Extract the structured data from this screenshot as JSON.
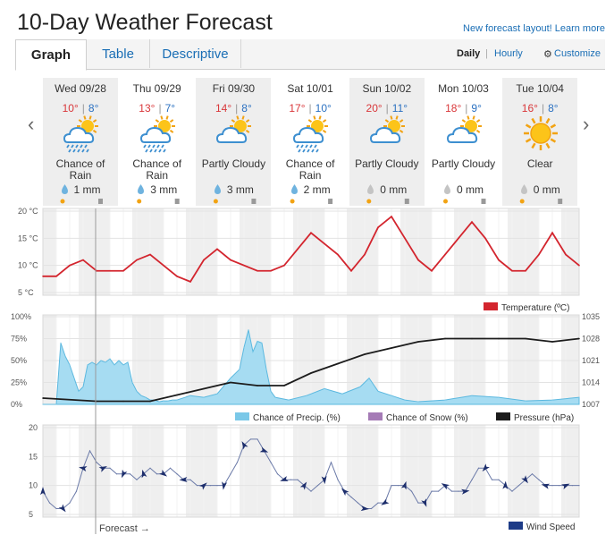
{
  "header": {
    "title": "10-Day Weather Forecast",
    "layout_link": "New forecast layout! Learn more"
  },
  "tabs": [
    {
      "label": "Graph"
    },
    {
      "label": "Table"
    },
    {
      "label": "Descriptive"
    }
  ],
  "view_switch": {
    "daily": "Daily",
    "separator": "|",
    "hourly": "Hourly",
    "customize": "Customize"
  },
  "days": [
    {
      "name": "Wed 09/28",
      "high": "10°",
      "low": "8°",
      "condition_line1": "Chance of",
      "condition_line2": "Rain",
      "icon": "rain-cloud-sun-icon",
      "precip": "1 mm",
      "precip_color": "#6fb3df"
    },
    {
      "name": "Thu 09/29",
      "high": "13°",
      "low": "7°",
      "condition_line1": "Chance of",
      "condition_line2": "Rain",
      "icon": "rain-cloud-sun-icon",
      "precip": "3 mm",
      "precip_color": "#6fb3df"
    },
    {
      "name": "Fri 09/30",
      "high": "14°",
      "low": "8°",
      "condition_line1": "Partly Cloudy",
      "condition_line2": "",
      "icon": "partly-cloudy-icon",
      "precip": "3 mm",
      "precip_color": "#6fb3df"
    },
    {
      "name": "Sat 10/01",
      "high": "17°",
      "low": "10°",
      "condition_line1": "Chance of",
      "condition_line2": "Rain",
      "icon": "rain-cloud-sun-icon",
      "precip": "2 mm",
      "precip_color": "#6fb3df"
    },
    {
      "name": "Sun 10/02",
      "high": "20°",
      "low": "11°",
      "condition_line1": "Partly Cloudy",
      "condition_line2": "",
      "icon": "partly-cloudy-icon",
      "precip": "0 mm",
      "precip_color": "#c4c4c4"
    },
    {
      "name": "Mon 10/03",
      "high": "18°",
      "low": "9°",
      "condition_line1": "Partly Cloudy",
      "condition_line2": "",
      "icon": "partly-cloudy-icon",
      "precip": "0 mm",
      "precip_color": "#c4c4c4"
    },
    {
      "name": "Tue 10/04",
      "high": "16°",
      "low": "8°",
      "condition_line1": "Clear",
      "condition_line2": "",
      "icon": "sun-icon",
      "precip": "0 mm",
      "precip_color": "#c4c4c4"
    }
  ],
  "nav": {
    "prev": "‹",
    "next": "›"
  },
  "chart_data": [
    {
      "type": "line",
      "name": "temperature",
      "ylim": [
        5,
        20
      ],
      "yticks": [
        20,
        15,
        10,
        5
      ],
      "ytick_unit": " °C",
      "x_hours": [
        0,
        6,
        12,
        18,
        24,
        30,
        36,
        42,
        48,
        54,
        60,
        66,
        72,
        78,
        84,
        96,
        102,
        108,
        114,
        120,
        126,
        132,
        138,
        144,
        150,
        156,
        162,
        168,
        174,
        180,
        186,
        192,
        198,
        204,
        210,
        216,
        222,
        228,
        234,
        240
      ],
      "series": [
        {
          "name": "Temperature (ºC)",
          "color": "#d3252e",
          "values": [
            8,
            8,
            10,
            11,
            9,
            9,
            9,
            11,
            12,
            10,
            8,
            7,
            11,
            13,
            11,
            9,
            9,
            10,
            13,
            16,
            14,
            12,
            9,
            12,
            17,
            19,
            15,
            11,
            9,
            12,
            15,
            18,
            15,
            11,
            9,
            9,
            12,
            16,
            12,
            10
          ]
        }
      ],
      "legend": "Temperature (ºC)",
      "legend_color": "#d3252e"
    },
    {
      "type": "area",
      "name": "precip-pressure",
      "ylim": [
        0,
        100
      ],
      "yticks": [
        "100%",
        "75%",
        "50%",
        "25%",
        "0%"
      ],
      "y2ticks": [
        "1035",
        "1028",
        "1021",
        "1014",
        "1007"
      ],
      "y2lim": [
        1007,
        1035
      ],
      "x_hours": [
        0,
        6,
        8,
        10,
        12,
        14,
        16,
        18,
        20,
        22,
        24,
        26,
        28,
        30,
        32,
        34,
        36,
        38,
        40,
        42,
        44,
        46,
        48,
        50,
        52,
        54,
        56,
        58,
        60,
        66,
        72,
        78,
        84,
        88,
        90,
        92,
        94,
        96,
        98,
        100,
        102,
        104,
        110,
        118,
        126,
        134,
        142,
        146,
        150,
        156,
        162,
        168,
        180,
        192,
        204,
        216,
        228,
        240
      ],
      "series": [
        {
          "name": "Chance of Precip. (%)",
          "color": "#7ac8e8",
          "values": [
            0,
            0,
            70,
            55,
            45,
            30,
            15,
            20,
            45,
            48,
            45,
            50,
            48,
            52,
            45,
            50,
            45,
            48,
            25,
            15,
            10,
            8,
            5,
            5,
            3,
            4,
            4,
            5,
            5,
            10,
            8,
            12,
            30,
            40,
            65,
            85,
            60,
            72,
            70,
            40,
            15,
            8,
            5,
            10,
            18,
            12,
            20,
            30,
            15,
            10,
            5,
            3,
            5,
            10,
            8,
            4,
            5,
            8
          ]
        },
        {
          "name": "Chance of Snow (%)",
          "color": "#a57bb6",
          "values": []
        }
      ],
      "pressure": {
        "name": "Pressure (hPa)",
        "color": "#1c1c1c",
        "x_hours": [
          0,
          24,
          36,
          48,
          60,
          72,
          84,
          96,
          108,
          120,
          132,
          144,
          156,
          168,
          180,
          192,
          204,
          216,
          228,
          240
        ],
        "values": [
          1009,
          1008,
          1008,
          1008,
          1010,
          1012,
          1014,
          1013,
          1013,
          1017,
          1020,
          1023,
          1025,
          1027,
          1028,
          1028,
          1028,
          1028,
          1027,
          1028
        ]
      }
    },
    {
      "type": "line",
      "name": "wind",
      "ylim": [
        5,
        20
      ],
      "yticks": [
        20,
        15,
        10,
        5
      ],
      "x_hours": [
        0,
        3,
        6,
        9,
        12,
        15,
        18,
        21,
        24,
        27,
        30,
        33,
        36,
        39,
        42,
        45,
        48,
        51,
        54,
        57,
        60,
        63,
        66,
        69,
        72,
        75,
        78,
        81,
        84,
        87,
        90,
        93,
        96,
        99,
        102,
        105,
        108,
        111,
        114,
        117,
        120,
        123,
        126,
        129,
        132,
        135,
        138,
        141,
        144,
        147,
        150,
        153,
        156,
        159,
        162,
        165,
        168,
        171,
        174,
        177,
        180,
        183,
        186,
        189,
        192,
        195,
        198,
        201,
        204,
        207,
        210,
        213,
        216,
        219,
        222,
        225,
        228,
        231,
        234,
        237,
        240
      ],
      "series": [
        {
          "name": "Wind Speed",
          "color": "#1d2e6c",
          "values": [
            9,
            7,
            6,
            6,
            7,
            9,
            13,
            16,
            14,
            13,
            13,
            12,
            12,
            12,
            11,
            12,
            13,
            12,
            12,
            13,
            12,
            11,
            11,
            10,
            10,
            10,
            10,
            10,
            12,
            14,
            17,
            18,
            18,
            16,
            14,
            12,
            11,
            11,
            11,
            10,
            9,
            10,
            11,
            14,
            11,
            9,
            8,
            7,
            6,
            6,
            7,
            7,
            10,
            10,
            10,
            9,
            7,
            7,
            9,
            9,
            10,
            9,
            9,
            9,
            11,
            13,
            13,
            11,
            11,
            10,
            9,
            10,
            11,
            12,
            11,
            10,
            10,
            10,
            10,
            10,
            10
          ]
        }
      ],
      "legend": "Wind Speed",
      "legend_color": "#1d3b87"
    }
  ],
  "forecast_label": "Forecast →"
}
